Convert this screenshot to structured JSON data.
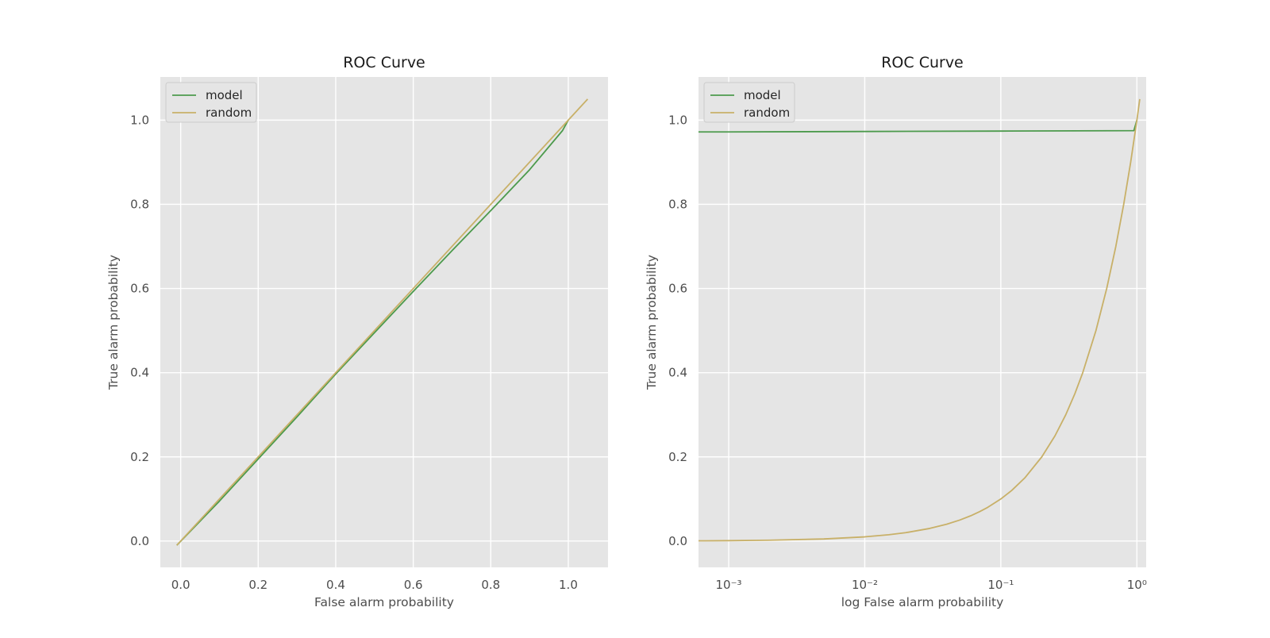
{
  "chart_data": [
    {
      "type": "line",
      "title": "ROC Curve",
      "xlabel": "False alarm probability",
      "ylabel": "True alarm probability",
      "xscale": "linear",
      "xlim": [
        -0.0525,
        1.1025
      ],
      "ylim": [
        -0.0625,
        1.1025
      ],
      "xticks": [
        0.0,
        0.2,
        0.4,
        0.6,
        0.8,
        1.0
      ],
      "xtick_labels": [
        "0.0",
        "0.2",
        "0.4",
        "0.6",
        "0.8",
        "1.0"
      ],
      "yticks": [
        0.0,
        0.2,
        0.4,
        0.6,
        0.8,
        1.0
      ],
      "ytick_labels": [
        "0.0",
        "0.2",
        "0.4",
        "0.6",
        "0.8",
        "1.0"
      ],
      "grid": true,
      "legend": "upper-left",
      "series": [
        {
          "name": "model",
          "color": "#4c9a4c",
          "x": [
            -0.01,
            0.1,
            0.2,
            0.3,
            0.4,
            0.5,
            0.6,
            0.7,
            0.8,
            0.9,
            0.985,
            1.0
          ],
          "y": [
            -0.01,
            0.095,
            0.195,
            0.295,
            0.397,
            0.495,
            0.593,
            0.69,
            0.785,
            0.882,
            0.975,
            1.0
          ]
        },
        {
          "name": "random",
          "color": "#c8b068",
          "x": [
            -0.01,
            0.2,
            0.4,
            0.6,
            0.8,
            1.0,
            1.05
          ],
          "y": [
            -0.01,
            0.2,
            0.4,
            0.6,
            0.8,
            1.0,
            1.05
          ]
        }
      ]
    },
    {
      "type": "line",
      "title": "ROC Curve",
      "xlabel": "log False alarm probability",
      "ylabel": "True alarm probability",
      "xscale": "log",
      "xlim": [
        0.0006,
        1.17
      ],
      "ylim": [
        -0.0625,
        1.1025
      ],
      "xticks": [
        0.001,
        0.01,
        0.1,
        1
      ],
      "xtick_labels": [
        "10⁻³",
        "10⁻²",
        "10⁻¹",
        "10⁰"
      ],
      "yticks": [
        0.0,
        0.2,
        0.4,
        0.6,
        0.8,
        1.0
      ],
      "ytick_labels": [
        "0.0",
        "0.2",
        "0.4",
        "0.6",
        "0.8",
        "1.0"
      ],
      "grid": true,
      "legend": "upper-left",
      "series": [
        {
          "name": "model",
          "color": "#4c9a4c",
          "x": [
            0.0006,
            0.001,
            0.01,
            0.1,
            0.95,
            1.0
          ],
          "y": [
            0.972,
            0.972,
            0.973,
            0.974,
            0.975,
            1.0
          ]
        },
        {
          "name": "random",
          "color": "#c8b068",
          "x": [
            0.0006,
            0.001,
            0.002,
            0.005,
            0.01,
            0.015,
            0.02,
            0.03,
            0.04,
            0.05,
            0.06,
            0.07,
            0.08,
            0.1,
            0.12,
            0.15,
            0.2,
            0.25,
            0.3,
            0.35,
            0.4,
            0.5,
            0.6,
            0.7,
            0.8,
            0.9,
            1.0,
            1.05
          ],
          "y": [
            0.0006,
            0.001,
            0.002,
            0.005,
            0.01,
            0.015,
            0.02,
            0.03,
            0.04,
            0.05,
            0.06,
            0.07,
            0.08,
            0.1,
            0.12,
            0.15,
            0.2,
            0.25,
            0.3,
            0.35,
            0.4,
            0.5,
            0.6,
            0.7,
            0.8,
            0.9,
            1.0,
            1.05
          ]
        }
      ]
    }
  ]
}
